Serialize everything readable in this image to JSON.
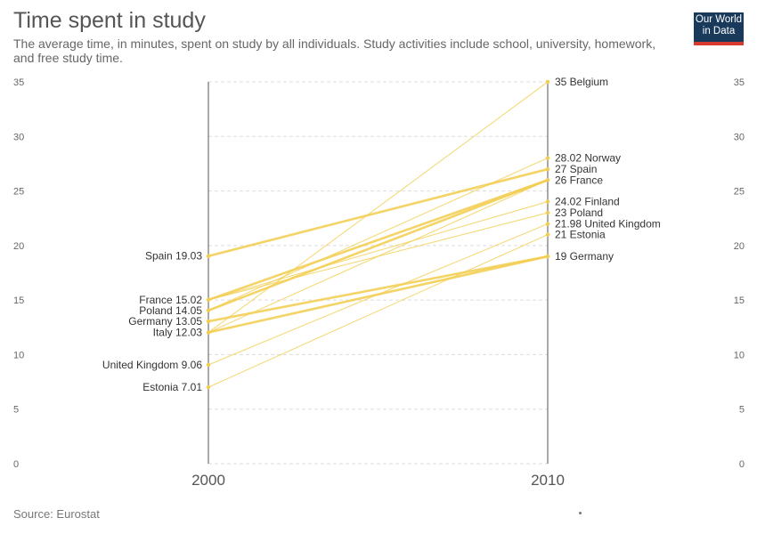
{
  "header": {
    "title": "Time spent in study",
    "subtitle": "The average time, in minutes, spent on study by all individuals. Study activities include school, university, homework, and free study time."
  },
  "logo": {
    "line1": "Our World",
    "line2": "in Data",
    "colors": {
      "background": "#1a3a5c",
      "bar": "#d73a2f"
    }
  },
  "footer": {
    "source": "Source: Eurostat"
  },
  "chart_data": {
    "type": "line",
    "subtype": "slope",
    "x": [
      "2000",
      "2010"
    ],
    "ylim": [
      0,
      35
    ],
    "y_ticks": [
      "0",
      "5",
      "10",
      "15",
      "20",
      "25",
      "30",
      "35"
    ],
    "grid": true,
    "line_color": "#f2cc4c",
    "series": [
      {
        "name": "Belgium",
        "values": [
          null,
          35
        ]
      },
      {
        "name": "Norway",
        "values": [
          null,
          28.02
        ]
      },
      {
        "name": "Spain",
        "values": [
          19.03,
          27
        ]
      },
      {
        "name": "France",
        "values": [
          15.02,
          26
        ]
      },
      {
        "name": "Finland",
        "values": [
          null,
          24.02
        ]
      },
      {
        "name": "Poland",
        "values": [
          14.05,
          23
        ]
      },
      {
        "name": "United Kingdom",
        "values": [
          9.06,
          21.98
        ]
      },
      {
        "name": "Estonia",
        "values": [
          7.01,
          21
        ]
      },
      {
        "name": "Germany",
        "values": [
          13.05,
          19
        ]
      },
      {
        "name": "Italy",
        "values": [
          12.03,
          null
        ]
      }
    ],
    "left_labels": [
      {
        "text": "Spain 19.03",
        "value": 19.03
      },
      {
        "text": "France 15.02",
        "value": 15.02
      },
      {
        "text": "Poland 14.05",
        "value": 14.05
      },
      {
        "text": "Germany 13.05",
        "value": 13.05
      },
      {
        "text": "Italy 12.03",
        "value": 12.03
      },
      {
        "text": "United Kingdom 9.06",
        "value": 9.06
      },
      {
        "text": "Estonia 7.01",
        "value": 7.01
      }
    ],
    "right_labels": [
      {
        "text": "35 Belgium",
        "value": 35
      },
      {
        "text": "28.02 Norway",
        "value": 28.02
      },
      {
        "text": "27 Spain",
        "value": 27
      },
      {
        "text": "26 France",
        "value": 26
      },
      {
        "text": "24.02 Finland",
        "value": 24.02
      },
      {
        "text": "23 Poland",
        "value": 23
      },
      {
        "text": "21.98 United Kingdom",
        "value": 21.98
      },
      {
        "text": "21 Estonia",
        "value": 21
      },
      {
        "text": "19 Germany",
        "value": 19
      }
    ],
    "faint_lines": [
      {
        "from": 12.03,
        "to": 35
      },
      {
        "from": 14.05,
        "to": 28.02
      },
      {
        "from": 12.03,
        "to": 26
      },
      {
        "from": 15.02,
        "to": 24.02
      },
      {
        "from": 15.02,
        "to": 23
      },
      {
        "from": 7.01,
        "to": 21
      },
      {
        "from": 9.06,
        "to": 21.98
      }
    ],
    "bold_lines": [
      {
        "from": 19.03,
        "to": 27
      },
      {
        "from": 15.02,
        "to": 26
      },
      {
        "from": 14.05,
        "to": 26
      },
      {
        "from": 13.05,
        "to": 19
      },
      {
        "from": 12.03,
        "to": 19
      }
    ]
  }
}
